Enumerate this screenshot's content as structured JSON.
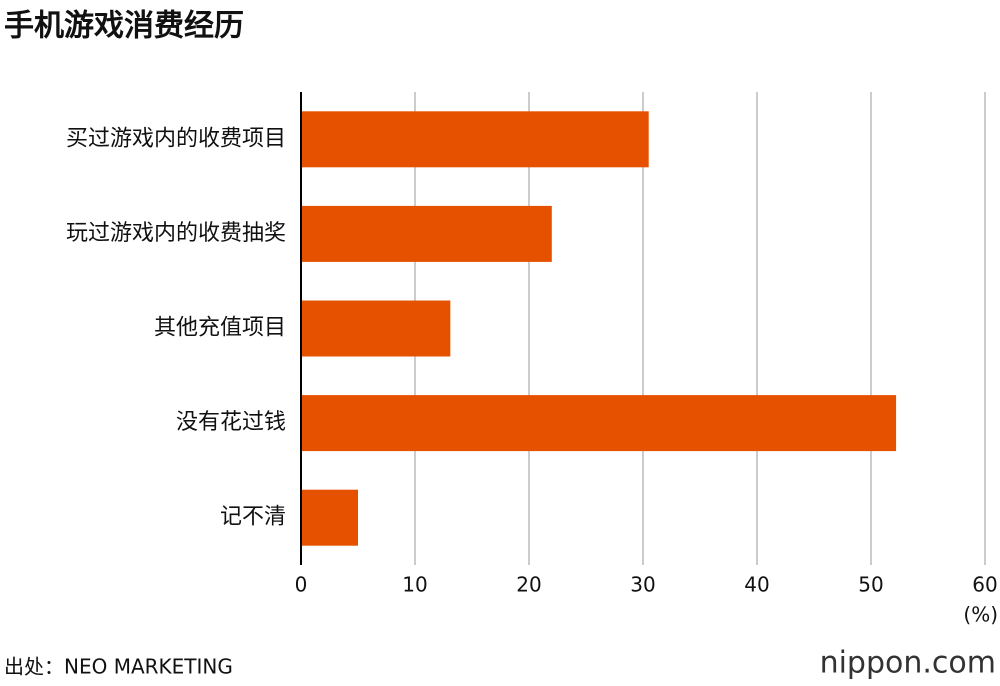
{
  "chart_data": {
    "type": "bar",
    "orientation": "horizontal",
    "title": "手机游戏消费经历",
    "categories": [
      "买过游戏内的收费项目",
      "玩过游戏内的收费抽奖",
      "其他充值项目",
      "没有花过钱",
      "记不清"
    ],
    "values": [
      30.5,
      22,
      13.1,
      52.2,
      5
    ],
    "color": "#e65100",
    "xlim": [
      0,
      60
    ],
    "xticks": [
      0,
      10,
      20,
      30,
      40,
      50,
      60
    ],
    "grid": true,
    "unit_label": "(%)",
    "source": "出处：NEO MARKETING",
    "brand": "nippon.com"
  }
}
